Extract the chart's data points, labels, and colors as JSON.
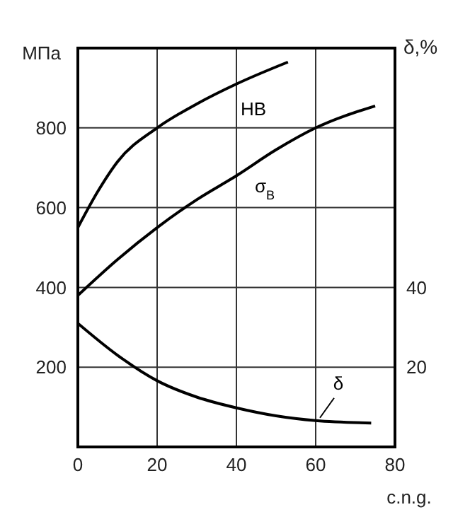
{
  "chart_data": {
    "type": "line",
    "xlabel": "c.n.g.",
    "ylabel": "МПа",
    "y2label": "δ,%",
    "xlim": [
      0,
      80
    ],
    "xticks": [
      0,
      20,
      40,
      60,
      80
    ],
    "ylim": [
      0,
      1000
    ],
    "yticks": [
      200,
      400,
      600,
      800
    ],
    "y2lim": [
      0,
      100
    ],
    "y2ticks": [
      20,
      40
    ],
    "grid": true,
    "marker": "none",
    "line_style": "solid",
    "series": [
      {
        "name": "HB",
        "color": "#000000",
        "x": [
          0,
          5,
          10,
          20,
          30,
          40,
          53
        ],
        "values": [
          550,
          640,
          715,
          800,
          860,
          910,
          965
        ]
      },
      {
        "name": "σ$_{B}$",
        "color": "#000000",
        "x": [
          0,
          10,
          20,
          30,
          40,
          50,
          60,
          75
        ],
        "values": [
          380,
          470,
          550,
          620,
          680,
          745,
          800,
          855
        ]
      },
      {
        "name": "δ",
        "color": "#000000",
        "axis": "y2",
        "x": [
          0,
          10,
          20,
          30,
          40,
          50,
          60,
          74
        ],
        "values": [
          31,
          23,
          16.6,
          12.5,
          9.8,
          7.8,
          6.6,
          6.0
        ]
      }
    ]
  }
}
